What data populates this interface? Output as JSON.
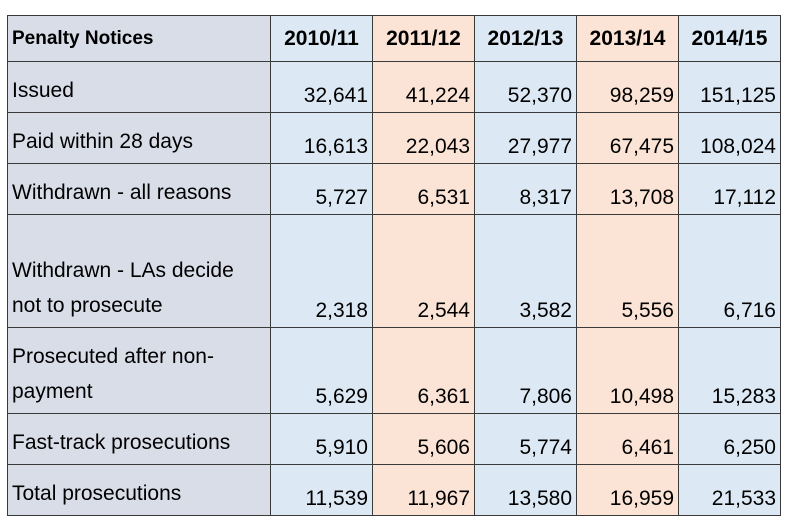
{
  "chart_data": {
    "type": "table",
    "header": {
      "label": "Penalty Notices",
      "columns": [
        "2010/11",
        "2011/12",
        "2012/13",
        "2013/14",
        "2014/15"
      ]
    },
    "rows": [
      {
        "label": "Issued",
        "values": [
          "32,641",
          "41,224",
          "52,370",
          "98,259",
          "151,125"
        ]
      },
      {
        "label": "Paid within 28 days",
        "values": [
          "16,613",
          "22,043",
          "27,977",
          "67,475",
          "108,024"
        ]
      },
      {
        "label": "Withdrawn - all reasons",
        "values": [
          "5,727",
          "6,531",
          "8,317",
          "13,708",
          "17,112"
        ]
      },
      {
        "label": "Withdrawn - LAs decide not to prosecute",
        "values": [
          "2,318",
          "2,544",
          "3,582",
          "5,556",
          "6,716"
        ]
      },
      {
        "label": "Prosecuted after non-payment",
        "values": [
          "5,629",
          "6,361",
          "7,806",
          "10,498",
          "15,283"
        ]
      },
      {
        "label": "Fast-track prosecutions",
        "values": [
          "5,910",
          "5,606",
          "5,774",
          "6,461",
          "6,250"
        ]
      },
      {
        "label": "Total prosecutions",
        "values": [
          "11,539",
          "11,967",
          "13,580",
          "16,959",
          "21,533"
        ]
      }
    ],
    "column_colors": [
      "#dce9f5",
      "#fbe4d6",
      "#dce9f5",
      "#fbe4d6",
      "#dce9f5"
    ],
    "label_color": "#d9dde8"
  }
}
